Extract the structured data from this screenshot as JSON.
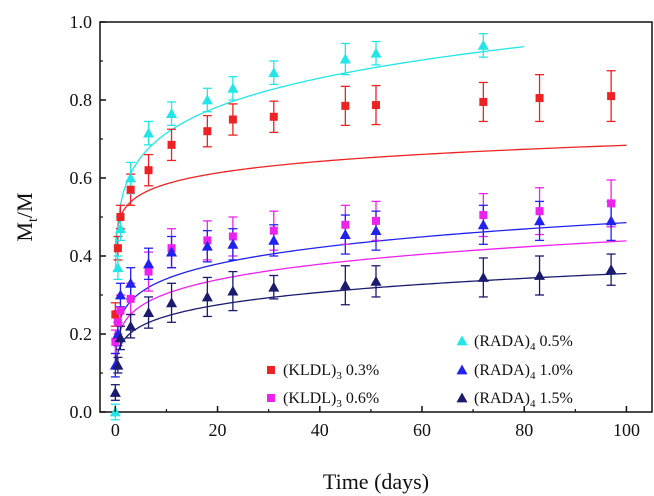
{
  "chart_data": {
    "type": "scatter",
    "xlabel": "Time (days)",
    "ylabel_main": "M",
    "ylabel_sub": "t",
    "ylabel_tail": "/M",
    "xlim": [
      -3,
      105
    ],
    "ylim": [
      0,
      1.0
    ],
    "x_ticks": [
      0,
      20,
      40,
      60,
      80,
      100
    ],
    "y_ticks": [
      0.0,
      0.2,
      0.4,
      0.6,
      0.8,
      1.0
    ],
    "x_tick_labels": [
      "0",
      "20",
      "40",
      "60",
      "80",
      "100"
    ],
    "y_tick_labels": [
      "0.0",
      "0.2",
      "0.4",
      "0.6",
      "0.8",
      "1.0"
    ],
    "grid": false,
    "legend_position": "bottom-right",
    "series": [
      {
        "name": "(KLDL)3 0.3%",
        "legend_base": "(KLDL)",
        "legend_sub": "3",
        "legend_tail": " 0.3%",
        "marker": "square",
        "color": "#ee2222",
        "x": [
          0,
          0.5,
          1,
          3,
          6.5,
          11,
          18,
          23,
          31,
          45,
          51,
          72,
          83,
          97
        ],
        "y": [
          0.25,
          0.42,
          0.5,
          0.57,
          0.62,
          0.685,
          0.72,
          0.75,
          0.757,
          0.785,
          0.787,
          0.795,
          0.805,
          0.81
        ],
        "err": [
          0.03,
          0.03,
          0.03,
          0.04,
          0.04,
          0.04,
          0.04,
          0.04,
          0.04,
          0.05,
          0.05,
          0.05,
          0.06,
          0.065
        ]
      },
      {
        "name": "(KLDL)3 0.6%",
        "legend_base": "(KLDL)",
        "legend_sub": "3",
        "legend_tail": " 0.6%",
        "marker": "square",
        "color": "#ee22ee",
        "x": [
          0,
          0.5,
          1,
          3,
          6.5,
          11,
          18,
          23,
          31,
          45,
          51,
          72,
          83,
          97
        ],
        "y": [
          0.18,
          0.23,
          0.26,
          0.29,
          0.36,
          0.42,
          0.44,
          0.45,
          0.465,
          0.48,
          0.49,
          0.505,
          0.515,
          0.535
        ],
        "err": [
          0.03,
          0.03,
          0.04,
          0.04,
          0.05,
          0.05,
          0.05,
          0.05,
          0.05,
          0.05,
          0.05,
          0.055,
          0.06,
          0.06
        ]
      },
      {
        "name": "(RADA)4 0.5%",
        "legend_base": "(RADA)",
        "legend_sub": "4",
        "legend_tail": " 0.5%",
        "marker": "triangle",
        "color": "#22e6e6",
        "x": [
          0,
          0.5,
          1,
          3,
          6.5,
          11,
          18,
          23,
          31,
          45,
          51,
          72
        ],
        "y": [
          0.0,
          0.37,
          0.47,
          0.6,
          0.715,
          0.765,
          0.8,
          0.83,
          0.87,
          0.905,
          0.92,
          0.94
        ],
        "err": [
          0.02,
          0.03,
          0.03,
          0.04,
          0.03,
          0.03,
          0.03,
          0.03,
          0.03,
          0.04,
          0.03,
          0.03
        ]
      },
      {
        "name": "(RADA)4 1.0%",
        "legend_base": "(RADA)",
        "legend_sub": "4",
        "legend_tail": " 1.0%",
        "marker": "triangle",
        "color": "#2222ee",
        "x": [
          0,
          0.5,
          1,
          3,
          6.5,
          11,
          18,
          23,
          31,
          45,
          51,
          72,
          83,
          97
        ],
        "y": [
          0.12,
          0.2,
          0.3,
          0.33,
          0.38,
          0.41,
          0.425,
          0.43,
          0.44,
          0.455,
          0.465,
          0.48,
          0.49,
          0.49
        ],
        "err": [
          0.03,
          0.03,
          0.03,
          0.04,
          0.04,
          0.04,
          0.04,
          0.04,
          0.04,
          0.05,
          0.05,
          0.05,
          0.05,
          0.05
        ]
      },
      {
        "name": "(RADA)4 1.5%",
        "legend_base": "(RADA)",
        "legend_sub": "4",
        "legend_tail": " 1.5%",
        "marker": "triangle",
        "color": "#1a1a6e",
        "x": [
          0,
          0.5,
          1,
          3,
          6.5,
          11,
          18,
          23,
          31,
          45,
          51,
          72,
          83,
          97
        ],
        "y": [
          0.05,
          0.12,
          0.19,
          0.22,
          0.255,
          0.28,
          0.295,
          0.31,
          0.32,
          0.325,
          0.335,
          0.345,
          0.35,
          0.365
        ],
        "err": [
          0.02,
          0.02,
          0.03,
          0.03,
          0.04,
          0.05,
          0.05,
          0.05,
          0.03,
          0.05,
          0.04,
          0.05,
          0.05,
          0.04
        ]
      }
    ],
    "fit_curves": [
      {
        "series": "(KLDL)3 0.3%",
        "color": "#ee2222",
        "x_end": 100,
        "a": 0.5,
        "b": 0.068
      },
      {
        "series": "(KLDL)3 0.6%",
        "color": "#ee22ee",
        "x_end": 100,
        "a": 0.21,
        "b": 0.16
      },
      {
        "series": "(RADA)4 0.5%",
        "color": "#22e6e6",
        "x_end": 80,
        "a": 0.53,
        "b": 0.13
      },
      {
        "series": "(RADA)4 1.0%",
        "color": "#2222ee",
        "x_end": 100,
        "a": 0.24,
        "b": 0.153
      },
      {
        "series": "(RADA)4 1.5%",
        "color": "#1a1a6e",
        "x_end": 100,
        "a": 0.17,
        "b": 0.16
      }
    ]
  }
}
